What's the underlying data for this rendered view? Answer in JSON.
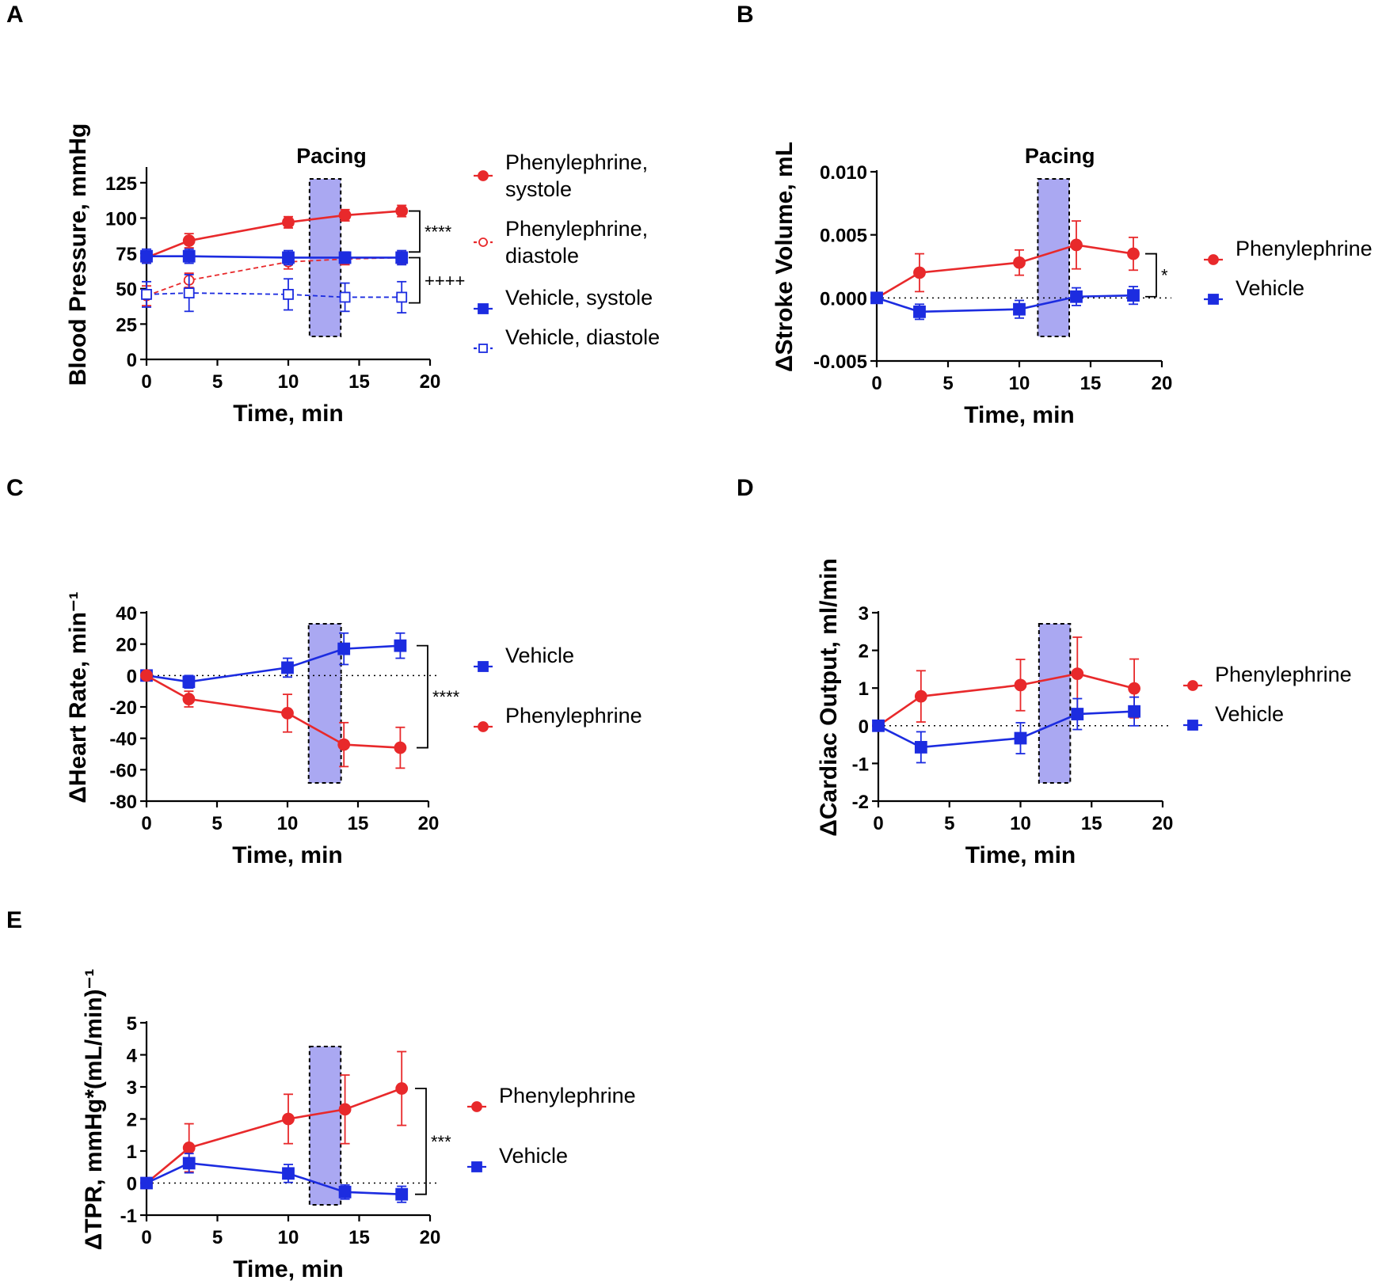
{
  "colors": {
    "red": "#e8292b",
    "blue": "#1c2ce0",
    "pacing_fill": "#aaa8f2"
  },
  "chart_data": [
    {
      "panel": "A",
      "type": "line",
      "pacing_label": "Pacing",
      "pacing_range": [
        11.5,
        13.7
      ],
      "xlabel": "Time, min",
      "ylabel": "Blood Pressure, mmHg",
      "xlim": [
        0,
        20
      ],
      "ylim": [
        0,
        135
      ],
      "xticks": [
        0,
        5,
        10,
        15,
        20
      ],
      "yticks": [
        0,
        25,
        50,
        75,
        100,
        125
      ],
      "zero_line": false,
      "x": [
        0,
        3,
        10,
        14,
        18
      ],
      "series": [
        {
          "name": "Phenylephrine, systole",
          "legend_lines": [
            "Phenylephrine,",
            "systole"
          ],
          "color": "red",
          "marker": "circle",
          "filled": true,
          "dashed": false,
          "values": [
            72,
            84,
            97,
            102,
            105
          ],
          "errors": [
            4,
            5,
            4,
            4,
            4
          ]
        },
        {
          "name": "Phenylephrine, diastole",
          "legend_lines": [
            "Phenylephrine,",
            "diastole"
          ],
          "color": "red",
          "marker": "circle",
          "filled": false,
          "dashed": true,
          "values": [
            45,
            56,
            69,
            71,
            72
          ],
          "errors": [
            7,
            5,
            5,
            4,
            4
          ]
        },
        {
          "name": "Vehicle, systole",
          "legend_lines": [
            "Vehicle, systole"
          ],
          "color": "blue",
          "marker": "square",
          "filled": true,
          "dashed": false,
          "values": [
            73,
            73,
            72,
            72,
            72
          ],
          "errors": [
            5,
            5,
            5,
            4,
            5
          ]
        },
        {
          "name": "Vehicle, diastole",
          "legend_lines": [
            "Vehicle, diastole"
          ],
          "color": "blue",
          "marker": "square",
          "filled": false,
          "dashed": true,
          "values": [
            46,
            47,
            46,
            44,
            44
          ],
          "errors": [
            9,
            13,
            11,
            10,
            11
          ]
        }
      ],
      "significance": [
        {
          "text": "****",
          "y_from": 105,
          "y_to": 76
        },
        {
          "text": "++++",
          "y_from": 72,
          "y_to": 40
        }
      ]
    },
    {
      "panel": "B",
      "type": "line",
      "pacing_label": "Pacing",
      "pacing_range": [
        11.3,
        13.5
      ],
      "xlabel": "Time, min",
      "ylabel": "ΔStroke Volume, mL",
      "xlim": [
        0,
        20
      ],
      "ylim": [
        -0.005,
        0.01
      ],
      "xticks": [
        0,
        5,
        10,
        15,
        20
      ],
      "yticks": [
        -0.005,
        0.0,
        0.005,
        0.01
      ],
      "ytick_labels": [
        "-0.005",
        "0.000",
        "0.005",
        "0.010"
      ],
      "zero_line": true,
      "x": [
        0,
        3,
        10,
        14,
        18
      ],
      "series": [
        {
          "name": "Phenylephrine",
          "legend_lines": [
            "Phenylephrine"
          ],
          "color": "red",
          "marker": "circle",
          "filled": true,
          "dashed": false,
          "values": [
            0,
            0.002,
            0.0028,
            0.0042,
            0.0035
          ],
          "errors": [
            0,
            0.0015,
            0.001,
            0.0019,
            0.0013
          ]
        },
        {
          "name": "Vehicle",
          "legend_lines": [
            "Vehicle"
          ],
          "color": "blue",
          "marker": "square",
          "filled": true,
          "dashed": false,
          "values": [
            0,
            -0.0011,
            -0.0009,
            0.0001,
            0.0002
          ],
          "errors": [
            0,
            0.0006,
            0.0007,
            0.0007,
            0.0007
          ]
        }
      ],
      "significance": [
        {
          "text": "*",
          "y_from": 0.0035,
          "y_to": 0.0001
        }
      ]
    },
    {
      "panel": "C",
      "type": "line",
      "pacing_label": "",
      "pacing_range": [
        11.5,
        13.8
      ],
      "xlabel": "Time, min",
      "ylabel": "ΔHeart  Rate, min⁻¹",
      "xlim": [
        0,
        20
      ],
      "ylim": [
        -80,
        40
      ],
      "xticks": [
        0,
        5,
        10,
        15,
        20
      ],
      "yticks": [
        -80,
        -60,
        -40,
        -20,
        0,
        20,
        40
      ],
      "zero_line": true,
      "x": [
        0,
        3,
        10,
        14,
        18
      ],
      "series": [
        {
          "name": "Vehicle",
          "legend_lines": [
            "Vehicle"
          ],
          "color": "blue",
          "marker": "square",
          "filled": true,
          "dashed": false,
          "values": [
            0,
            -4,
            5,
            17,
            19
          ],
          "errors": [
            0,
            4,
            6,
            10,
            8
          ]
        },
        {
          "name": "Phenylephrine",
          "legend_lines": [
            "Phenylephrine"
          ],
          "color": "red",
          "marker": "circle",
          "filled": true,
          "dashed": false,
          "values": [
            0,
            -15,
            -24,
            -44,
            -46
          ],
          "errors": [
            0,
            5,
            12,
            14,
            13
          ]
        }
      ],
      "significance": [
        {
          "text": "****",
          "y_from": 19,
          "y_to": -46
        }
      ]
    },
    {
      "panel": "D",
      "type": "line",
      "pacing_label": "",
      "pacing_range": [
        11.3,
        13.5
      ],
      "xlabel": "Time, min",
      "ylabel": "ΔCardiac Output, ml/min",
      "xlim": [
        0,
        20
      ],
      "ylim": [
        -2,
        3
      ],
      "xticks": [
        0,
        5,
        10,
        15,
        20
      ],
      "yticks": [
        -2,
        -1,
        0,
        1,
        2,
        3
      ],
      "zero_line": true,
      "x": [
        0,
        3,
        10,
        14,
        18
      ],
      "series": [
        {
          "name": "Phenylephrine",
          "legend_lines": [
            "Phenylephrine"
          ],
          "color": "red",
          "marker": "circle",
          "filled": true,
          "dashed": false,
          "values": [
            0,
            0.78,
            1.08,
            1.38,
            0.99
          ],
          "errors": [
            0,
            0.68,
            0.68,
            0.97,
            0.78
          ]
        },
        {
          "name": "Vehicle",
          "legend_lines": [
            "Vehicle"
          ],
          "color": "blue",
          "marker": "square",
          "filled": true,
          "dashed": false,
          "values": [
            0,
            -0.57,
            -0.33,
            0.31,
            0.38
          ],
          "errors": [
            0,
            0.41,
            0.41,
            0.41,
            0.38
          ]
        }
      ],
      "significance": []
    },
    {
      "panel": "E",
      "type": "line",
      "pacing_label": "",
      "pacing_range": [
        11.5,
        13.7
      ],
      "xlabel": "Time, min",
      "ylabel": "ΔTPR, mmHg*(mL/min)⁻¹",
      "xlim": [
        0,
        20
      ],
      "ylim": [
        -1,
        5
      ],
      "xticks": [
        0,
        5,
        10,
        15,
        20
      ],
      "yticks": [
        -1,
        0,
        1,
        2,
        3,
        4,
        5
      ],
      "zero_line": true,
      "x": [
        0,
        3,
        10,
        14,
        18
      ],
      "series": [
        {
          "name": "Phenylephrine",
          "legend_lines": [
            "Phenylephrine"
          ],
          "color": "red",
          "marker": "circle",
          "filled": true,
          "dashed": false,
          "values": [
            0,
            1.1,
            2.0,
            2.3,
            2.95
          ],
          "errors": [
            0,
            0.75,
            0.77,
            1.07,
            1.15
          ]
        },
        {
          "name": "Vehicle",
          "legend_lines": [
            "Vehicle"
          ],
          "color": "blue",
          "marker": "square",
          "filled": true,
          "dashed": false,
          "values": [
            0,
            0.62,
            0.3,
            -0.28,
            -0.35
          ],
          "errors": [
            0,
            0.3,
            0.28,
            0.22,
            0.25
          ]
        }
      ],
      "significance": [
        {
          "text": "***",
          "y_from": 2.95,
          "y_to": -0.35
        }
      ]
    }
  ]
}
